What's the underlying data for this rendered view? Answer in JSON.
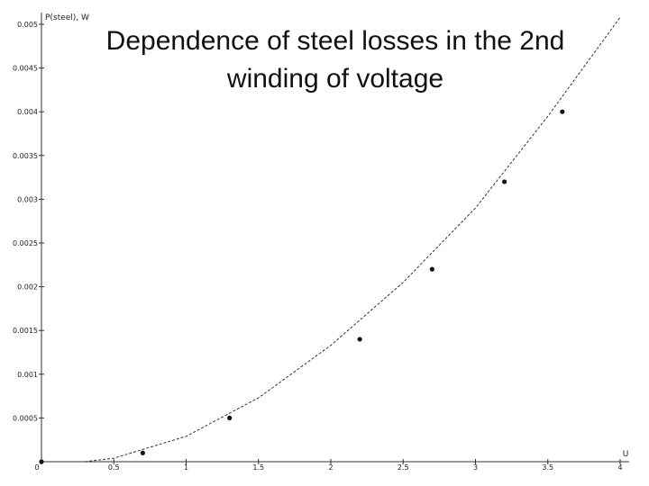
{
  "chart_data": {
    "type": "scatter",
    "title_lines": [
      "Dependence of steel losses in the 2nd",
      "winding of  voltage"
    ],
    "xlabel": "U",
    "ylabel": "P(steel), W",
    "xlim": [
      0,
      4
    ],
    "ylim": [
      0,
      0.005
    ],
    "x_ticks": [
      "0",
      "0.5",
      "1",
      "1.5",
      "2",
      "2.5",
      "3",
      "3.5",
      "4"
    ],
    "y_ticks": [
      "0.0005",
      "0.001",
      "0.0015",
      "0.002",
      "0.0025",
      "0.003",
      "0.0035",
      "0.004",
      "0.0045",
      "0.005"
    ],
    "grid": false,
    "points": [
      {
        "x": 0,
        "y": 0
      },
      {
        "x": 0.7,
        "y": 0.0001
      },
      {
        "x": 1.3,
        "y": 0.0005
      },
      {
        "x": 2.2,
        "y": 0.0014
      },
      {
        "x": 2.7,
        "y": 0.0022
      },
      {
        "x": 3.2,
        "y": 0.0032
      },
      {
        "x": 3.6,
        "y": 0.004
      }
    ],
    "fit_curve": {
      "style": "dashed",
      "samples": [
        [
          0.3,
          0
        ],
        [
          0.5,
          4e-05
        ],
        [
          1.0,
          0.00029
        ],
        [
          1.5,
          0.00073
        ],
        [
          2.0,
          0.00133
        ],
        [
          2.5,
          0.00205
        ],
        [
          3.0,
          0.0029
        ],
        [
          3.5,
          0.00395
        ],
        [
          4.0,
          0.00508
        ]
      ]
    }
  }
}
